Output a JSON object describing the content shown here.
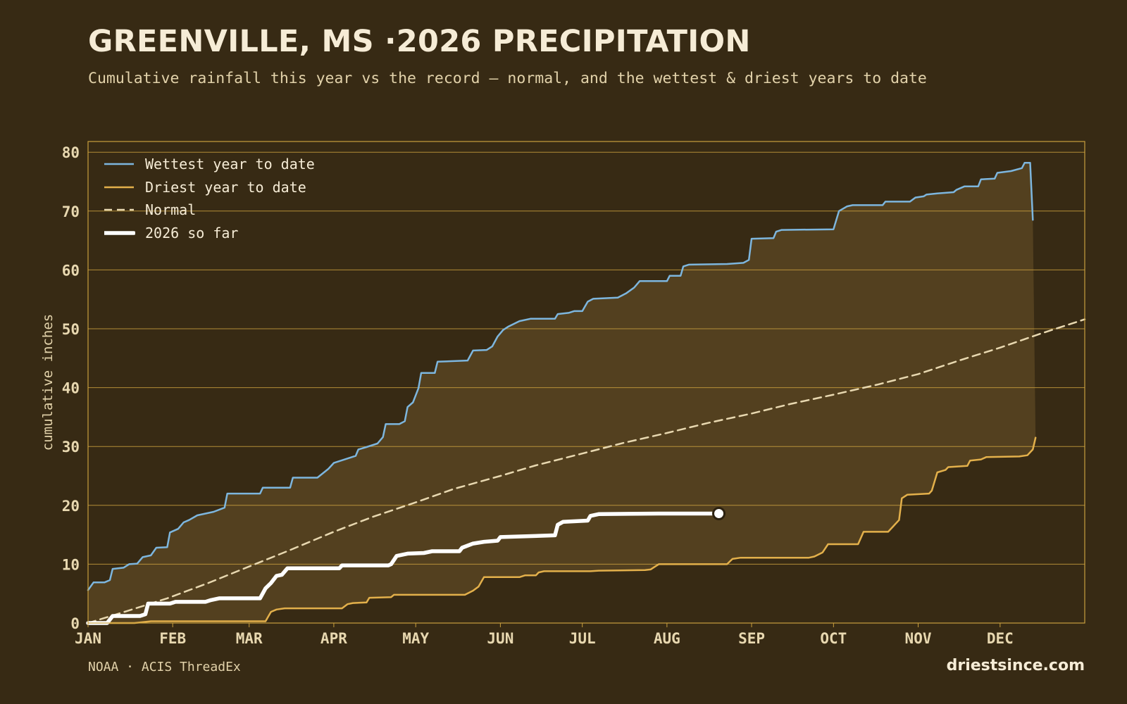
{
  "title": "GREENVILLE, MS ·2026 PRECIPITATION",
  "subtitle": "Cumulative rainfall this year vs the record — normal, and the wettest & driest years to date",
  "source": "NOAA · ACIS ThreadEx",
  "brand": "driestsince.com",
  "colors": {
    "background": "#372a14",
    "band_fill": "#53401f",
    "grid": "#c99f3e",
    "wettest": "#7db6de",
    "driest": "#e3b04b",
    "normal": "#e8d8b0",
    "current": "#ffffff",
    "text": "#f6ecd6",
    "muted_text": "#e2d2aa"
  },
  "chart_data": {
    "type": "line",
    "xlabel": "",
    "ylabel": "cumulative inches",
    "xlim": [
      1,
      366
    ],
    "ylim": [
      0,
      82
    ],
    "x_ticks": [
      {
        "label": "JAN",
        "day": 1
      },
      {
        "label": "FEB",
        "day": 32
      },
      {
        "label": "MAR",
        "day": 60
      },
      {
        "label": "APR",
        "day": 91
      },
      {
        "label": "MAY",
        "day": 121
      },
      {
        "label": "JUN",
        "day": 152
      },
      {
        "label": "JUL",
        "day": 182
      },
      {
        "label": "AUG",
        "day": 213
      },
      {
        "label": "SEP",
        "day": 244
      },
      {
        "label": "OCT",
        "day": 274
      },
      {
        "label": "NOV",
        "day": 305
      },
      {
        "label": "DEC",
        "day": 335
      }
    ],
    "y_ticks": [
      0,
      10,
      20,
      30,
      40,
      50,
      60,
      70,
      80
    ],
    "grid": "horizontal",
    "legend": {
      "position": "top-left",
      "entries": [
        "Wettest year to date",
        "Driest year to date",
        "Normal",
        "2026 so far"
      ]
    },
    "series": [
      {
        "name": "Wettest year to date",
        "style": "step-solid",
        "points": [
          [
            1,
            5.6
          ],
          [
            3,
            6.9
          ],
          [
            7,
            6.9
          ],
          [
            9,
            7.3
          ],
          [
            10,
            9.2
          ],
          [
            14,
            9.4
          ],
          [
            16,
            10.0
          ],
          [
            19,
            10.1
          ],
          [
            21,
            11.2
          ],
          [
            24,
            11.5
          ],
          [
            26,
            12.8
          ],
          [
            30,
            12.9
          ],
          [
            31,
            15.4
          ],
          [
            34,
            16.0
          ],
          [
            36,
            17.1
          ],
          [
            38,
            17.5
          ],
          [
            41,
            18.3
          ],
          [
            44,
            18.6
          ],
          [
            47,
            18.9
          ],
          [
            51,
            19.6
          ],
          [
            52,
            22.0
          ],
          [
            64,
            22.0
          ],
          [
            65,
            23.0
          ],
          [
            75,
            23.0
          ],
          [
            76,
            24.7
          ],
          [
            85,
            24.7
          ],
          [
            89,
            26.2
          ],
          [
            91,
            27.2
          ],
          [
            95,
            27.8
          ],
          [
            99,
            28.4
          ],
          [
            100,
            29.5
          ],
          [
            103,
            29.9
          ],
          [
            107,
            30.5
          ],
          [
            109,
            31.6
          ],
          [
            110,
            33.8
          ],
          [
            115,
            33.8
          ],
          [
            117,
            34.3
          ],
          [
            118,
            36.7
          ],
          [
            120,
            37.5
          ],
          [
            122,
            39.9
          ],
          [
            123,
            42.5
          ],
          [
            128,
            42.5
          ],
          [
            129,
            44.4
          ],
          [
            140,
            44.6
          ],
          [
            142,
            46.3
          ],
          [
            147,
            46.4
          ],
          [
            149,
            47.0
          ],
          [
            151,
            48.7
          ],
          [
            153,
            49.8
          ],
          [
            155,
            50.4
          ],
          [
            159,
            51.3
          ],
          [
            163,
            51.7
          ],
          [
            172,
            51.7
          ],
          [
            173,
            52.5
          ],
          [
            177,
            52.7
          ],
          [
            179,
            53.0
          ],
          [
            182,
            53.0
          ],
          [
            184,
            54.6
          ],
          [
            186,
            55.1
          ],
          [
            195,
            55.3
          ],
          [
            198,
            56.0
          ],
          [
            201,
            57.0
          ],
          [
            203,
            58.1
          ],
          [
            213,
            58.1
          ],
          [
            214,
            59.0
          ],
          [
            218,
            59.0
          ],
          [
            219,
            60.6
          ],
          [
            221,
            60.9
          ],
          [
            235,
            61.0
          ],
          [
            241,
            61.2
          ],
          [
            243,
            61.7
          ],
          [
            244,
            65.3
          ],
          [
            252,
            65.4
          ],
          [
            253,
            66.5
          ],
          [
            255,
            66.8
          ],
          [
            274,
            66.9
          ],
          [
            276,
            70.0
          ],
          [
            279,
            70.8
          ],
          [
            281,
            71.0
          ],
          [
            292,
            71.0
          ],
          [
            293,
            71.6
          ],
          [
            302,
            71.6
          ],
          [
            304,
            72.3
          ],
          [
            307,
            72.5
          ],
          [
            308,
            72.8
          ],
          [
            312,
            73.0
          ],
          [
            318,
            73.2
          ],
          [
            319,
            73.6
          ],
          [
            322,
            74.2
          ],
          [
            327,
            74.2
          ],
          [
            328,
            75.4
          ],
          [
            333,
            75.5
          ],
          [
            334,
            76.5
          ],
          [
            339,
            76.8
          ],
          [
            343,
            77.3
          ],
          [
            344,
            78.2
          ],
          [
            346,
            78.2
          ],
          [
            347,
            68.5
          ]
        ]
      },
      {
        "name": "Driest year to date",
        "style": "step-solid",
        "points": [
          [
            1,
            0.0
          ],
          [
            18,
            0.0
          ],
          [
            24,
            0.3
          ],
          [
            66,
            0.3
          ],
          [
            68,
            1.9
          ],
          [
            70,
            2.3
          ],
          [
            73,
            2.5
          ],
          [
            94,
            2.5
          ],
          [
            96,
            3.2
          ],
          [
            98,
            3.4
          ],
          [
            103,
            3.5
          ],
          [
            104,
            4.3
          ],
          [
            112,
            4.4
          ],
          [
            113,
            4.8
          ],
          [
            139,
            4.8
          ],
          [
            142,
            5.5
          ],
          [
            144,
            6.2
          ],
          [
            146,
            7.8
          ],
          [
            159,
            7.8
          ],
          [
            161,
            8.1
          ],
          [
            165,
            8.1
          ],
          [
            166,
            8.6
          ],
          [
            168,
            8.8
          ],
          [
            185,
            8.8
          ],
          [
            188,
            8.9
          ],
          [
            205,
            9.0
          ],
          [
            207,
            9.1
          ],
          [
            210,
            10.0
          ],
          [
            235,
            10.0
          ],
          [
            237,
            10.9
          ],
          [
            240,
            11.1
          ],
          [
            265,
            11.1
          ],
          [
            267,
            11.3
          ],
          [
            270,
            12.0
          ],
          [
            272,
            13.4
          ],
          [
            283,
            13.4
          ],
          [
            285,
            15.5
          ],
          [
            294,
            15.5
          ],
          [
            296,
            16.5
          ],
          [
            298,
            17.5
          ],
          [
            299,
            21.2
          ],
          [
            301,
            21.8
          ],
          [
            309,
            22.0
          ],
          [
            310,
            22.5
          ],
          [
            312,
            25.6
          ],
          [
            315,
            26.0
          ],
          [
            316,
            26.5
          ],
          [
            323,
            26.7
          ],
          [
            324,
            27.6
          ],
          [
            328,
            27.8
          ],
          [
            330,
            28.2
          ],
          [
            342,
            28.3
          ],
          [
            345,
            28.5
          ],
          [
            347,
            29.5
          ],
          [
            348,
            31.5
          ]
        ]
      },
      {
        "name": "Normal",
        "style": "dashed",
        "points": [
          [
            1,
            0.0
          ],
          [
            15,
            2.0
          ],
          [
            30,
            4.2
          ],
          [
            45,
            6.8
          ],
          [
            60,
            9.6
          ],
          [
            75,
            12.4
          ],
          [
            91,
            15.5
          ],
          [
            105,
            18.0
          ],
          [
            121,
            20.5
          ],
          [
            135,
            22.8
          ],
          [
            152,
            25.0
          ],
          [
            165,
            26.8
          ],
          [
            182,
            28.8
          ],
          [
            197,
            30.6
          ],
          [
            213,
            32.3
          ],
          [
            228,
            34.0
          ],
          [
            244,
            35.6
          ],
          [
            258,
            37.2
          ],
          [
            274,
            38.8
          ],
          [
            290,
            40.5
          ],
          [
            305,
            42.3
          ],
          [
            320,
            44.6
          ],
          [
            335,
            46.8
          ],
          [
            350,
            49.2
          ],
          [
            366,
            51.6
          ]
        ]
      },
      {
        "name": "2026 so far",
        "style": "step-bold",
        "points": [
          [
            1,
            0.0
          ],
          [
            8,
            0.0
          ],
          [
            10,
            1.2
          ],
          [
            20,
            1.2
          ],
          [
            22,
            1.5
          ],
          [
            23,
            3.3
          ],
          [
            31,
            3.3
          ],
          [
            33,
            3.6
          ],
          [
            44,
            3.6
          ],
          [
            46,
            3.9
          ],
          [
            49,
            4.2
          ],
          [
            64,
            4.2
          ],
          [
            66,
            5.9
          ],
          [
            68,
            6.8
          ],
          [
            70,
            8.0
          ],
          [
            72,
            8.2
          ],
          [
            74,
            9.3
          ],
          [
            93,
            9.3
          ],
          [
            94,
            9.8
          ],
          [
            111,
            9.8
          ],
          [
            112,
            10.0
          ],
          [
            114,
            11.4
          ],
          [
            118,
            11.8
          ],
          [
            124,
            11.9
          ],
          [
            127,
            12.2
          ],
          [
            137,
            12.2
          ],
          [
            138,
            12.8
          ],
          [
            142,
            13.5
          ],
          [
            146,
            13.8
          ],
          [
            151,
            14.0
          ],
          [
            152,
            14.6
          ],
          [
            172,
            14.9
          ],
          [
            173,
            16.7
          ],
          [
            175,
            17.2
          ],
          [
            184,
            17.4
          ],
          [
            185,
            18.2
          ],
          [
            188,
            18.5
          ],
          [
            210,
            18.6
          ],
          [
            232,
            18.6
          ]
        ]
      }
    ],
    "current_marker": {
      "day": 232,
      "value": 18.6
    }
  }
}
